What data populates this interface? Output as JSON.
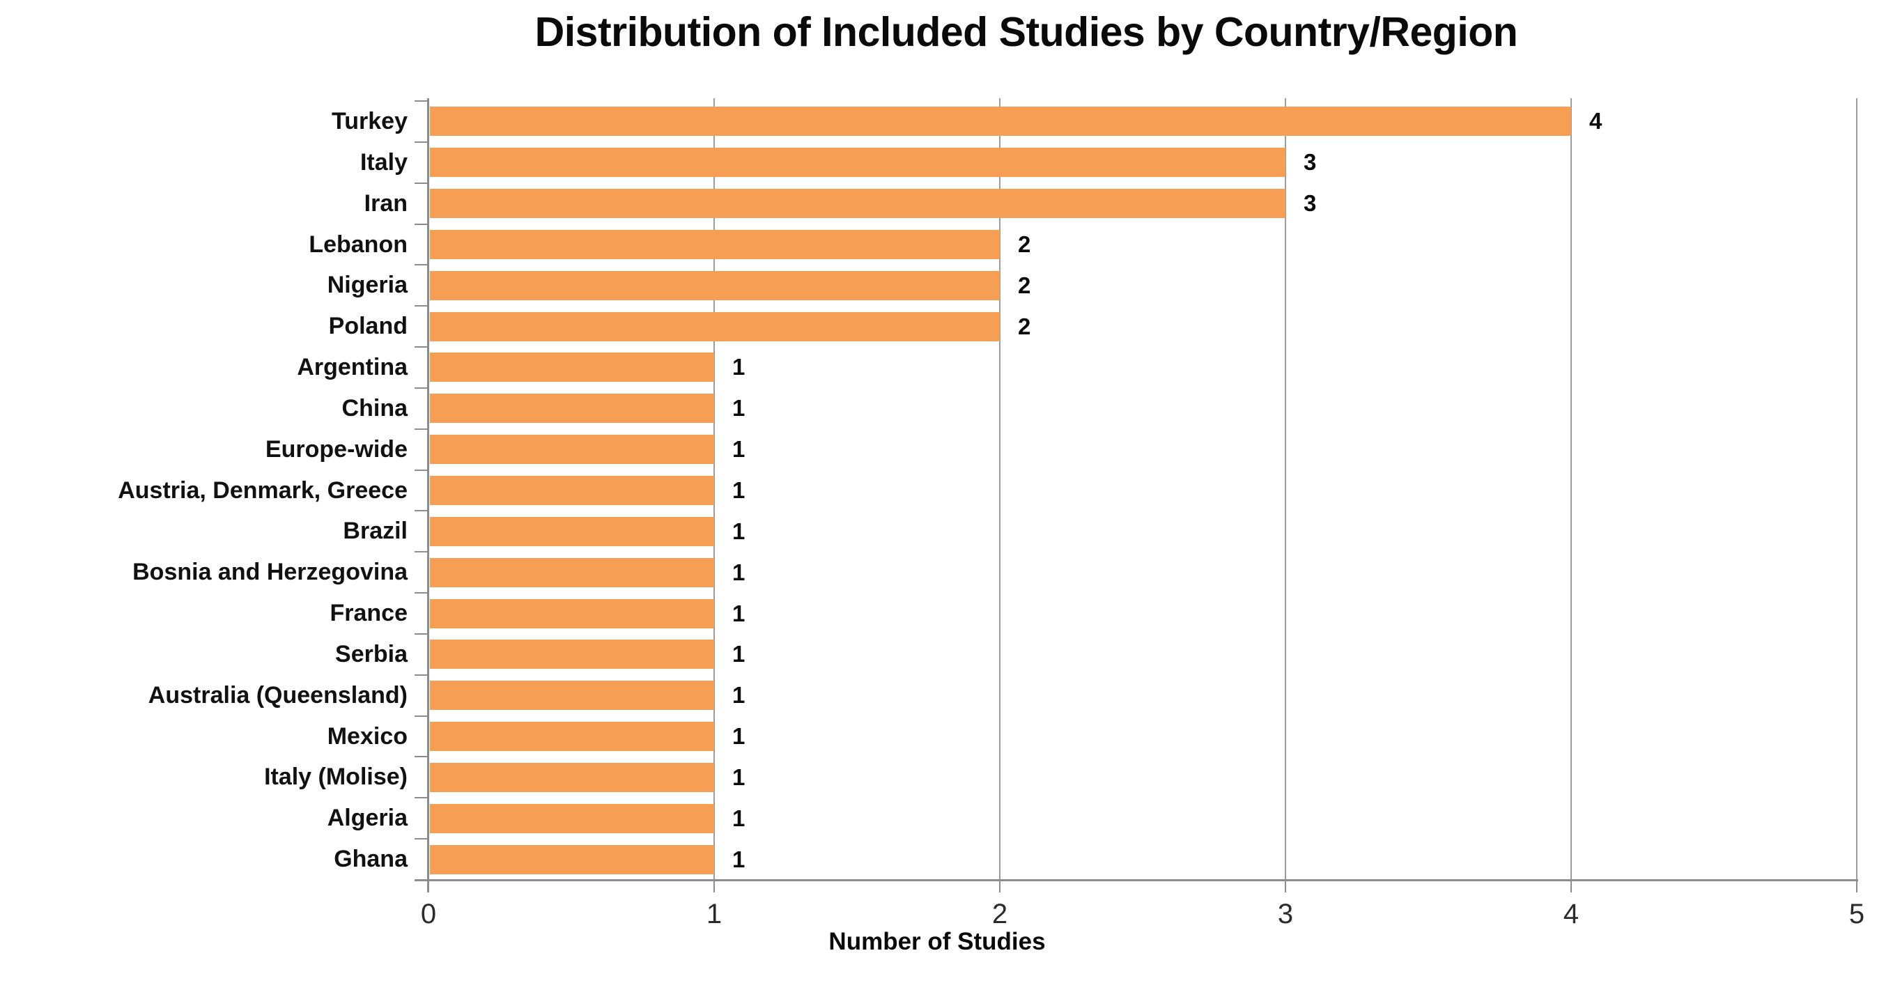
{
  "chart_data": {
    "type": "bar",
    "orientation": "horizontal",
    "title": "Distribution of Included Studies by Country/Region",
    "xlabel": "Number of Studies",
    "categories": [
      "Turkey",
      "Italy",
      "Iran",
      "Lebanon",
      "Nigeria",
      "Poland",
      "Argentina",
      "China",
      "Europe-wide",
      "Austria, Denmark, Greece",
      "Brazil",
      "Bosnia and Herzegovina",
      "France",
      "Serbia",
      "Australia (Queensland)",
      "Mexico",
      "Italy (Molise)",
      "Algeria",
      "Ghana"
    ],
    "values": [
      4,
      3,
      3,
      2,
      2,
      2,
      1,
      1,
      1,
      1,
      1,
      1,
      1,
      1,
      1,
      1,
      1,
      1,
      1
    ],
    "x_ticks": [
      "0",
      "1",
      "2",
      "3",
      "4",
      "5"
    ],
    "xlim": [
      0,
      5
    ],
    "grid": true,
    "data_labels_shown": true,
    "legend": "none",
    "colors": {
      "bar": "#f59e54",
      "axis": "#8c8c8c",
      "gridline": "#9c9c9c",
      "text": "#0a0a0a",
      "background": "#ffffff"
    }
  }
}
